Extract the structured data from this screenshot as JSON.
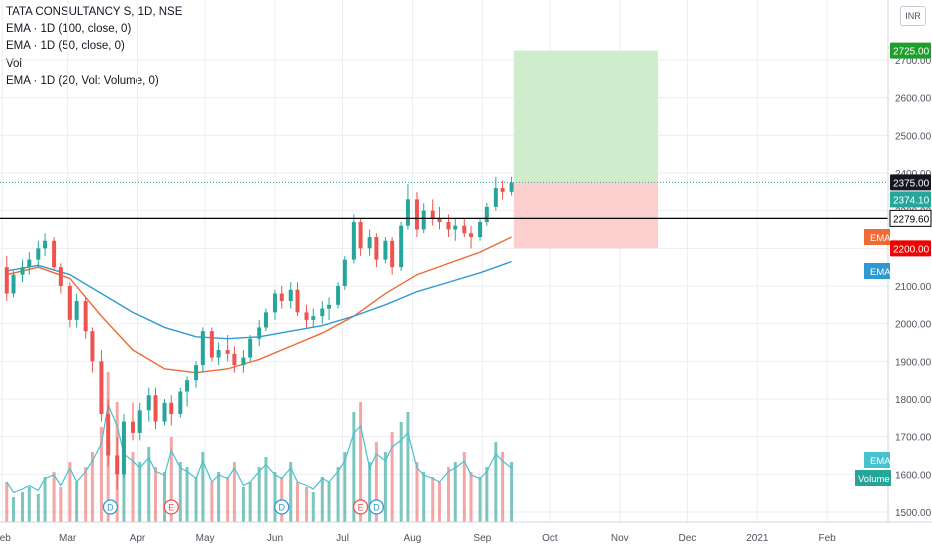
{
  "legend": {
    "symbol": "TATA CONSULTANCY S, 1D, NSE",
    "ema100": "EMA · 1D (100, close, 0)",
    "ema50": "EMA · 1D (50, close, 0)",
    "vol": "Vol",
    "ema_vol": "EMA · 1D (20, Vol: Volume, 0)"
  },
  "currency": "INR",
  "colors": {
    "up": "#26a69a",
    "down": "#ef5350",
    "vol_up": "#7cc6bd",
    "vol_down": "#f2a7a5",
    "ema50": "#f06a35",
    "ema100": "#2e9ad0",
    "vol_ema": "#49c2cf",
    "profit_zone": "#cfeccc",
    "loss_zone": "#fccfcf",
    "target_tag": "#1e9f2b",
    "stop_tag": "#f00000",
    "entry_tag": "#26a69a",
    "level_tag": "#131722",
    "grid": "#ecedf1",
    "axis_text": "#50535e"
  },
  "y_axis_ticks": [
    "2700.00",
    "2600.00",
    "2500.00",
    "2400.00",
    "2300.00",
    "2200.00",
    "2100.00",
    "2000.00",
    "1900.00",
    "1800.00",
    "1700.00",
    "1600.00",
    "1500.00"
  ],
  "x_axis_ticks": [
    "Feb",
    "Mar",
    "Apr",
    "May",
    "Jun",
    "Jul",
    "Aug",
    "Sep",
    "Oct",
    "Nov",
    "Dec",
    "2021",
    "Feb"
  ],
  "price_tags": {
    "target": "2725.00",
    "entry": "2375.00",
    "last": "2374.10",
    "level": "2279.60",
    "stop": "2200.00",
    "ema_label": "EMA",
    "vol_ema_label": "EMA",
    "volume_label": "Volume"
  },
  "event_markers": [
    {
      "label": "D",
      "date": "2020-03-20"
    },
    {
      "label": "E",
      "date": "2020-04-16"
    },
    {
      "label": "D",
      "date": "2020-06-04"
    },
    {
      "label": "E",
      "date": "2020-07-09"
    },
    {
      "label": "D",
      "date": "2020-07-16"
    }
  ],
  "chart_data": {
    "type": "candlestick",
    "title": "TATA CONSULTANCY S, 1D, NSE",
    "x_range": [
      "2020-01-31",
      "2021-02-28"
    ],
    "y_range": [
      1475,
      2820
    ],
    "horizontal_level": 2279.6,
    "position_tool": {
      "start": "2020-09-15",
      "end": "2020-11-18",
      "entry": 2375.0,
      "target": 2725.0,
      "stop": 2200.0
    },
    "series": [
      {
        "name": "TATA CONSULTANCY S",
        "kind": "ohlc",
        "points": [
          [
            "2020-02-03",
            2150,
            2180,
            2060,
            2080
          ],
          [
            "2020-02-06",
            2080,
            2140,
            2070,
            2130
          ],
          [
            "2020-02-10",
            2130,
            2170,
            2110,
            2150
          ],
          [
            "2020-02-13",
            2150,
            2190,
            2130,
            2170
          ],
          [
            "2020-02-17",
            2170,
            2220,
            2150,
            2200
          ],
          [
            "2020-02-20",
            2200,
            2240,
            2180,
            2220
          ],
          [
            "2020-02-24",
            2220,
            2230,
            2140,
            2150
          ],
          [
            "2020-02-27",
            2150,
            2160,
            2080,
            2100
          ],
          [
            "2020-03-02",
            2100,
            2110,
            1990,
            2010
          ],
          [
            "2020-03-05",
            2010,
            2080,
            1990,
            2060
          ],
          [
            "2020-03-09",
            2060,
            2070,
            1960,
            1980
          ],
          [
            "2020-03-12",
            1980,
            1990,
            1870,
            1900
          ],
          [
            "2020-03-16",
            1900,
            1930,
            1740,
            1760
          ],
          [
            "2020-03-19",
            1760,
            1800,
            1620,
            1650
          ],
          [
            "2020-03-23",
            1650,
            1700,
            1560,
            1600
          ],
          [
            "2020-03-26",
            1600,
            1760,
            1590,
            1740
          ],
          [
            "2020-03-30",
            1740,
            1790,
            1690,
            1710
          ],
          [
            "2020-04-02",
            1710,
            1790,
            1690,
            1770
          ],
          [
            "2020-04-06",
            1770,
            1830,
            1740,
            1810
          ],
          [
            "2020-04-09",
            1810,
            1830,
            1720,
            1740
          ],
          [
            "2020-04-13",
            1740,
            1800,
            1730,
            1790
          ],
          [
            "2020-04-16",
            1790,
            1810,
            1730,
            1760
          ],
          [
            "2020-04-20",
            1760,
            1830,
            1750,
            1820
          ],
          [
            "2020-04-23",
            1820,
            1860,
            1780,
            1850
          ],
          [
            "2020-04-27",
            1850,
            1900,
            1830,
            1890
          ],
          [
            "2020-04-30",
            1890,
            1990,
            1870,
            1980
          ],
          [
            "2020-05-04",
            1980,
            1990,
            1900,
            1910
          ],
          [
            "2020-05-07",
            1910,
            1950,
            1890,
            1930
          ],
          [
            "2020-05-11",
            1930,
            1970,
            1900,
            1920
          ],
          [
            "2020-05-14",
            1920,
            1940,
            1870,
            1890
          ],
          [
            "2020-05-18",
            1890,
            1930,
            1870,
            1910
          ],
          [
            "2020-05-21",
            1910,
            1970,
            1900,
            1960
          ],
          [
            "2020-05-25",
            1960,
            2010,
            1940,
            1990
          ],
          [
            "2020-05-28",
            1990,
            2040,
            1980,
            2030
          ],
          [
            "2020-06-01",
            2030,
            2090,
            2010,
            2080
          ],
          [
            "2020-06-04",
            2080,
            2100,
            2040,
            2060
          ],
          [
            "2020-06-08",
            2060,
            2110,
            2040,
            2090
          ],
          [
            "2020-06-11",
            2090,
            2110,
            2020,
            2030
          ],
          [
            "2020-06-15",
            2030,
            2050,
            1990,
            2010
          ],
          [
            "2020-06-18",
            2010,
            2040,
            1990,
            2020
          ],
          [
            "2020-06-22",
            2020,
            2060,
            2000,
            2040
          ],
          [
            "2020-06-25",
            2040,
            2070,
            2010,
            2050
          ],
          [
            "2020-06-29",
            2050,
            2110,
            2040,
            2100
          ],
          [
            "2020-07-02",
            2100,
            2180,
            2090,
            2170
          ],
          [
            "2020-07-06",
            2170,
            2290,
            2160,
            2270
          ],
          [
            "2020-07-09",
            2270,
            2280,
            2180,
            2200
          ],
          [
            "2020-07-13",
            2200,
            2250,
            2180,
            2230
          ],
          [
            "2020-07-16",
            2230,
            2240,
            2150,
            2170
          ],
          [
            "2020-07-20",
            2170,
            2230,
            2160,
            2220
          ],
          [
            "2020-07-23",
            2220,
            2230,
            2130,
            2150
          ],
          [
            "2020-07-27",
            2150,
            2270,
            2140,
            2260
          ],
          [
            "2020-07-30",
            2260,
            2370,
            2250,
            2330
          ],
          [
            "2020-08-03",
            2330,
            2350,
            2230,
            2250
          ],
          [
            "2020-08-06",
            2250,
            2320,
            2240,
            2300
          ],
          [
            "2020-08-10",
            2300,
            2330,
            2260,
            2280
          ],
          [
            "2020-08-13",
            2280,
            2310,
            2250,
            2270
          ],
          [
            "2020-08-17",
            2270,
            2290,
            2230,
            2250
          ],
          [
            "2020-08-20",
            2250,
            2280,
            2220,
            2260
          ],
          [
            "2020-08-24",
            2260,
            2280,
            2230,
            2240
          ],
          [
            "2020-08-27",
            2240,
            2260,
            2200,
            2230
          ],
          [
            "2020-08-31",
            2230,
            2280,
            2220,
            2270
          ],
          [
            "2020-09-03",
            2270,
            2320,
            2260,
            2310
          ],
          [
            "2020-09-07",
            2310,
            2390,
            2300,
            2360
          ],
          [
            "2020-09-10",
            2360,
            2380,
            2330,
            2350
          ],
          [
            "2020-09-14",
            2350,
            2390,
            2340,
            2374.1
          ]
        ]
      },
      {
        "name": "EMA (50, close)",
        "kind": "line",
        "points": [
          [
            "2020-02-03",
            2130
          ],
          [
            "2020-02-17",
            2150
          ],
          [
            "2020-03-02",
            2120
          ],
          [
            "2020-03-16",
            2020
          ],
          [
            "2020-03-30",
            1930
          ],
          [
            "2020-04-13",
            1880
          ],
          [
            "2020-04-27",
            1870
          ],
          [
            "2020-05-11",
            1880
          ],
          [
            "2020-05-25",
            1905
          ],
          [
            "2020-06-08",
            1940
          ],
          [
            "2020-06-22",
            1975
          ],
          [
            "2020-07-06",
            2020
          ],
          [
            "2020-07-20",
            2080
          ],
          [
            "2020-08-03",
            2130
          ],
          [
            "2020-08-17",
            2160
          ],
          [
            "2020-08-31",
            2190
          ],
          [
            "2020-09-14",
            2230
          ]
        ]
      },
      {
        "name": "EMA (100, close)",
        "kind": "line",
        "points": [
          [
            "2020-02-03",
            2140
          ],
          [
            "2020-02-17",
            2155
          ],
          [
            "2020-03-02",
            2130
          ],
          [
            "2020-03-16",
            2080
          ],
          [
            "2020-03-30",
            2030
          ],
          [
            "2020-04-13",
            1990
          ],
          [
            "2020-04-27",
            1965
          ],
          [
            "2020-05-11",
            1960
          ],
          [
            "2020-05-25",
            1965
          ],
          [
            "2020-06-08",
            1980
          ],
          [
            "2020-06-22",
            1995
          ],
          [
            "2020-07-06",
            2020
          ],
          [
            "2020-07-20",
            2050
          ],
          [
            "2020-08-03",
            2085
          ],
          [
            "2020-08-17",
            2110
          ],
          [
            "2020-08-31",
            2135
          ],
          [
            "2020-09-14",
            2165
          ]
        ]
      }
    ]
  }
}
